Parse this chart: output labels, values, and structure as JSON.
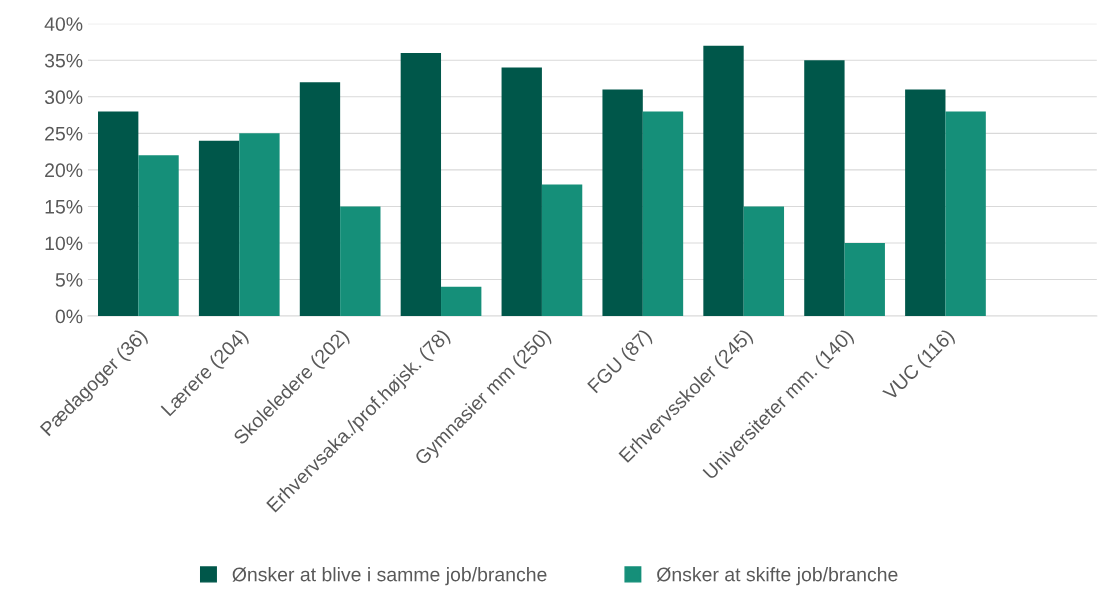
{
  "chart_data": {
    "type": "bar",
    "categories": [
      "Pædagoger (36)",
      "Lærere (204)",
      "Skoleledere (202)",
      "Erhvervsaka./prof.højsk. (78)",
      "Gymnasier mm (250)",
      "FGU (87)",
      "Erhvervsskoler (245)",
      "Universiteter mm. (140)",
      "VUC (116)",
      null
    ],
    "series": [
      {
        "name": "Ønsker at blive i samme job/branche",
        "color": "#00574a",
        "values": [
          28,
          24,
          32,
          36,
          34,
          31,
          37,
          35,
          31,
          null
        ]
      },
      {
        "name": "Ønsker at skifte job/branche",
        "color": "#158f79",
        "values": [
          22,
          25,
          15,
          4,
          18,
          28,
          15,
          10,
          28,
          null
        ]
      }
    ],
    "ylim": [
      0,
      40
    ],
    "yticks": [
      {
        "value": 0,
        "label": "0%"
      },
      {
        "value": 5,
        "label": "5%"
      },
      {
        "value": 10,
        "label": "10%"
      },
      {
        "value": 15,
        "label": "15%"
      },
      {
        "value": 20,
        "label": "20%"
      },
      {
        "value": 25,
        "label": "25%"
      },
      {
        "value": 30,
        "label": "30%"
      },
      {
        "value": 35,
        "label": "35%"
      },
      {
        "value": 40,
        "label": "40%"
      }
    ],
    "grid": "y",
    "legend": "bottom"
  }
}
